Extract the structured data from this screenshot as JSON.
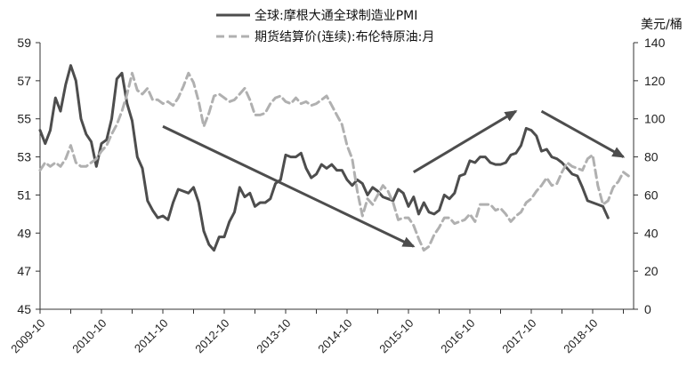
{
  "chart_data": {
    "type": "line",
    "title": "",
    "legend": [
      {
        "label": "全球:摩根大通全球制造业PMI",
        "color": "#4d4d4d",
        "dash": "solid"
      },
      {
        "label": "期货结算价(连续):布伦特原油:月",
        "color": "#b0b0b0",
        "dash": "dashed"
      }
    ],
    "x_tick_labels": [
      "2009-10",
      "2010-10",
      "2011-10",
      "2012-10",
      "2013-10",
      "2014-10",
      "2015-10",
      "2016-10",
      "2017-10",
      "2018-10"
    ],
    "y_left": {
      "min": 45,
      "max": 59,
      "ticks": [
        45,
        47,
        49,
        51,
        53,
        55,
        57,
        59
      ]
    },
    "y_right": {
      "min": 0,
      "max": 140,
      "ticks": [
        0,
        20,
        40,
        60,
        80,
        100,
        120,
        140
      ],
      "unit": "美元/桶"
    },
    "series": [
      {
        "name": "全球:摩根大通全球制造业PMI",
        "axis": "left",
        "points": [
          [
            "2009-10",
            54.4
          ],
          [
            "2009-11",
            53.7
          ],
          [
            "2009-12",
            54.4
          ],
          [
            "2010-01",
            56.1
          ],
          [
            "2010-02",
            55.4
          ],
          [
            "2010-03",
            56.8
          ],
          [
            "2010-04",
            57.8
          ],
          [
            "2010-05",
            57.0
          ],
          [
            "2010-06",
            55.0
          ],
          [
            "2010-07",
            54.2
          ],
          [
            "2010-08",
            53.8
          ],
          [
            "2010-09",
            52.5
          ],
          [
            "2010-10",
            53.7
          ],
          [
            "2010-11",
            53.9
          ],
          [
            "2010-12",
            55.0
          ],
          [
            "2011-01",
            57.1
          ],
          [
            "2011-02",
            57.4
          ],
          [
            "2011-03",
            55.8
          ],
          [
            "2011-04",
            54.9
          ],
          [
            "2011-05",
            53.0
          ],
          [
            "2011-06",
            52.4
          ],
          [
            "2011-07",
            50.7
          ],
          [
            "2011-08",
            50.2
          ],
          [
            "2011-09",
            49.8
          ],
          [
            "2011-10",
            49.9
          ],
          [
            "2011-11",
            49.7
          ],
          [
            "2011-12",
            50.6
          ],
          [
            "2012-01",
            51.3
          ],
          [
            "2012-02",
            51.2
          ],
          [
            "2012-03",
            51.1
          ],
          [
            "2012-04",
            51.4
          ],
          [
            "2012-05",
            50.6
          ],
          [
            "2012-06",
            49.1
          ],
          [
            "2012-07",
            48.4
          ],
          [
            "2012-08",
            48.1
          ],
          [
            "2012-09",
            48.8
          ],
          [
            "2012-10",
            48.8
          ],
          [
            "2012-11",
            49.6
          ],
          [
            "2012-12",
            50.1
          ],
          [
            "2013-01",
            51.4
          ],
          [
            "2013-02",
            50.9
          ],
          [
            "2013-03",
            51.1
          ],
          [
            "2013-04",
            50.4
          ],
          [
            "2013-05",
            50.6
          ],
          [
            "2013-06",
            50.6
          ],
          [
            "2013-07",
            50.8
          ],
          [
            "2013-08",
            51.6
          ],
          [
            "2013-09",
            51.8
          ],
          [
            "2013-10",
            53.1
          ],
          [
            "2013-11",
            53.0
          ],
          [
            "2013-12",
            53.0
          ],
          [
            "2014-01",
            53.2
          ],
          [
            "2014-02",
            52.4
          ],
          [
            "2014-03",
            51.9
          ],
          [
            "2014-04",
            52.1
          ],
          [
            "2014-05",
            52.6
          ],
          [
            "2014-06",
            52.4
          ],
          [
            "2014-07",
            52.6
          ],
          [
            "2014-08",
            52.3
          ],
          [
            "2014-09",
            52.3
          ],
          [
            "2014-10",
            51.8
          ],
          [
            "2014-11",
            51.5
          ],
          [
            "2014-12",
            51.8
          ],
          [
            "2015-01",
            51.6
          ],
          [
            "2015-02",
            51.0
          ],
          [
            "2015-03",
            51.4
          ],
          [
            "2015-04",
            51.2
          ],
          [
            "2015-05",
            50.9
          ],
          [
            "2015-06",
            50.8
          ],
          [
            "2015-07",
            50.7
          ],
          [
            "2015-08",
            51.3
          ],
          [
            "2015-09",
            51.1
          ],
          [
            "2015-10",
            50.4
          ],
          [
            "2015-11",
            50.9
          ],
          [
            "2015-12",
            50.0
          ],
          [
            "2016-01",
            50.6
          ],
          [
            "2016-02",
            50.1
          ],
          [
            "2016-03",
            50.0
          ],
          [
            "2016-04",
            50.2
          ],
          [
            "2016-05",
            51.0
          ],
          [
            "2016-06",
            50.8
          ],
          [
            "2016-07",
            51.1
          ],
          [
            "2016-08",
            52.0
          ],
          [
            "2016-09",
            52.1
          ],
          [
            "2016-10",
            52.8
          ],
          [
            "2016-11",
            52.7
          ],
          [
            "2016-12",
            53.0
          ],
          [
            "2017-01",
            53.0
          ],
          [
            "2017-02",
            52.7
          ],
          [
            "2017-03",
            52.6
          ],
          [
            "2017-04",
            52.6
          ],
          [
            "2017-05",
            52.7
          ],
          [
            "2017-06",
            53.1
          ],
          [
            "2017-07",
            53.2
          ],
          [
            "2017-08",
            53.6
          ],
          [
            "2017-09",
            54.5
          ],
          [
            "2017-10",
            54.4
          ],
          [
            "2017-11",
            54.1
          ],
          [
            "2017-12",
            53.3
          ],
          [
            "2018-01",
            53.4
          ],
          [
            "2018-02",
            53.0
          ],
          [
            "2018-03",
            52.9
          ],
          [
            "2018-04",
            52.7
          ],
          [
            "2018-05",
            52.4
          ],
          [
            "2018-06",
            52.1
          ],
          [
            "2018-07",
            52.0
          ],
          [
            "2018-08",
            51.4
          ],
          [
            "2018-09",
            50.7
          ],
          [
            "2018-10",
            50.6
          ],
          [
            "2018-11",
            50.5
          ],
          [
            "2018-12",
            50.4
          ],
          [
            "2019-01",
            49.8
          ]
        ]
      },
      {
        "name": "期货结算价(连续):布伦特原油:月",
        "axis": "right",
        "points": [
          [
            "2009-10",
            73
          ],
          [
            "2009-11",
            77
          ],
          [
            "2009-12",
            75
          ],
          [
            "2010-01",
            77
          ],
          [
            "2010-02",
            75
          ],
          [
            "2010-03",
            79
          ],
          [
            "2010-04",
            86
          ],
          [
            "2010-05",
            77
          ],
          [
            "2010-06",
            75
          ],
          [
            "2010-07",
            75
          ],
          [
            "2010-08",
            77
          ],
          [
            "2010-09",
            79
          ],
          [
            "2010-10",
            83
          ],
          [
            "2010-11",
            86
          ],
          [
            "2010-12",
            92
          ],
          [
            "2011-01",
            97
          ],
          [
            "2011-02",
            104
          ],
          [
            "2011-03",
            113
          ],
          [
            "2011-04",
            124
          ],
          [
            "2011-05",
            115
          ],
          [
            "2011-06",
            113
          ],
          [
            "2011-07",
            116
          ],
          [
            "2011-08",
            110
          ],
          [
            "2011-09",
            110
          ],
          [
            "2011-10",
            108
          ],
          [
            "2011-11",
            109
          ],
          [
            "2011-12",
            107
          ],
          [
            "2012-01",
            111
          ],
          [
            "2012-02",
            117
          ],
          [
            "2012-03",
            124
          ],
          [
            "2012-04",
            119
          ],
          [
            "2012-05",
            109
          ],
          [
            "2012-06",
            96
          ],
          [
            "2012-07",
            103
          ],
          [
            "2012-08",
            112
          ],
          [
            "2012-09",
            113
          ],
          [
            "2012-10",
            111
          ],
          [
            "2012-11",
            109
          ],
          [
            "2012-12",
            110
          ],
          [
            "2013-01",
            113
          ],
          [
            "2013-02",
            116
          ],
          [
            "2013-03",
            110
          ],
          [
            "2013-04",
            102
          ],
          [
            "2013-05",
            102
          ],
          [
            "2013-06",
            103
          ],
          [
            "2013-07",
            108
          ],
          [
            "2013-08",
            111
          ],
          [
            "2013-09",
            112
          ],
          [
            "2013-10",
            109
          ],
          [
            "2013-11",
            108
          ],
          [
            "2013-12",
            111
          ],
          [
            "2014-01",
            108
          ],
          [
            "2014-02",
            109
          ],
          [
            "2014-03",
            107
          ],
          [
            "2014-04",
            108
          ],
          [
            "2014-05",
            110
          ],
          [
            "2014-06",
            112
          ],
          [
            "2014-07",
            107
          ],
          [
            "2014-08",
            102
          ],
          [
            "2014-09",
            97
          ],
          [
            "2014-10",
            86
          ],
          [
            "2014-11",
            79
          ],
          [
            "2014-12",
            62
          ],
          [
            "2015-01",
            49
          ],
          [
            "2015-02",
            58
          ],
          [
            "2015-03",
            55
          ],
          [
            "2015-04",
            60
          ],
          [
            "2015-05",
            65
          ],
          [
            "2015-06",
            62
          ],
          [
            "2015-07",
            56
          ],
          [
            "2015-08",
            47
          ],
          [
            "2015-09",
            48
          ],
          [
            "2015-10",
            48
          ],
          [
            "2015-11",
            44
          ],
          [
            "2015-12",
            37
          ],
          [
            "2016-01",
            31
          ],
          [
            "2016-02",
            33
          ],
          [
            "2016-03",
            39
          ],
          [
            "2016-04",
            43
          ],
          [
            "2016-05",
            48
          ],
          [
            "2016-06",
            48
          ],
          [
            "2016-07",
            45
          ],
          [
            "2016-08",
            46
          ],
          [
            "2016-09",
            47
          ],
          [
            "2016-10",
            50
          ],
          [
            "2016-11",
            46
          ],
          [
            "2016-12",
            55
          ],
          [
            "2017-01",
            55
          ],
          [
            "2017-02",
            55
          ],
          [
            "2017-03",
            52
          ],
          [
            "2017-04",
            53
          ],
          [
            "2017-05",
            50
          ],
          [
            "2017-06",
            46
          ],
          [
            "2017-07",
            49
          ],
          [
            "2017-08",
            51
          ],
          [
            "2017-09",
            56
          ],
          [
            "2017-10",
            58
          ],
          [
            "2017-11",
            62
          ],
          [
            "2017-12",
            65
          ],
          [
            "2018-01",
            69
          ],
          [
            "2018-02",
            65
          ],
          [
            "2018-03",
            66
          ],
          [
            "2018-04",
            72
          ],
          [
            "2018-05",
            77
          ],
          [
            "2018-06",
            75
          ],
          [
            "2018-07",
            74
          ],
          [
            "2018-08",
            73
          ],
          [
            "2018-09",
            79
          ],
          [
            "2018-10",
            81
          ],
          [
            "2018-11",
            65
          ],
          [
            "2018-12",
            55
          ],
          [
            "2019-01",
            57
          ],
          [
            "2019-02",
            64
          ],
          [
            "2019-03",
            67
          ],
          [
            "2019-04",
            72
          ],
          [
            "2019-05",
            70
          ]
        ]
      }
    ],
    "annotation_arrows": [
      {
        "from": [
          "2011-10",
          54.6
        ],
        "to": [
          "2015-11",
          48.3
        ],
        "axis": "left",
        "color": "#4d4d4d"
      },
      {
        "from": [
          "2015-11",
          52.2
        ],
        "to": [
          "2017-07",
          55.4
        ],
        "axis": "left",
        "color": "#4d4d4d"
      },
      {
        "from": [
          "2017-12",
          55.4
        ],
        "to": [
          "2019-04",
          53.0
        ],
        "axis": "left",
        "color": "#4d4d4d"
      }
    ]
  }
}
